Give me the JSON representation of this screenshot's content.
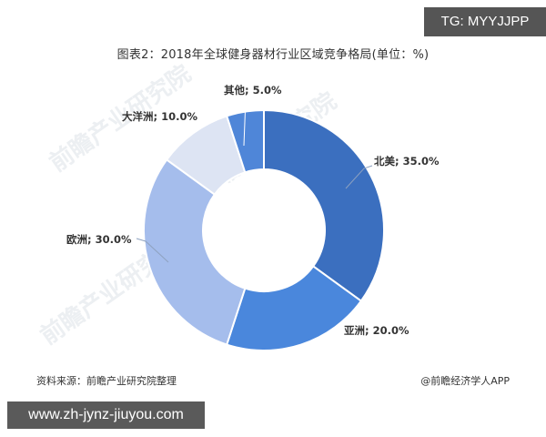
{
  "badges": {
    "top_right": "TG: MYYJJPP",
    "bottom_left": "www.zh-jynz-jiuyou.com"
  },
  "footer": {
    "source": "资料来源：前瞻产业研究院整理",
    "credit": "@前瞻经济学人APP"
  },
  "watermarks": [
    "前瞻产业研究院",
    "前瞻产业研究院",
    "前瞻产业研究院"
  ],
  "chart_data": {
    "type": "pie",
    "variant": "donut",
    "title": "图表2：2018年全球健身器材行业区域竞争格局(单位：%)",
    "unit": "%",
    "categories": [
      "北美",
      "亚洲",
      "欧洲",
      "大洋洲",
      "其他"
    ],
    "values": [
      35.0,
      20.0,
      30.0,
      10.0,
      5.0
    ],
    "colors": [
      "#3b6fbf",
      "#4a87dc",
      "#a5bdec",
      "#dde4f3",
      "#4f86d8"
    ],
    "labels": [
      "北美; 35.0%",
      "亚洲; 20.0%",
      "欧洲; 30.0%",
      "大洋洲; 10.0%",
      "其他; 5.0%"
    ],
    "start_angle": "12 o'clock, clockwise",
    "legend": "none (data labels with leader lines)"
  }
}
